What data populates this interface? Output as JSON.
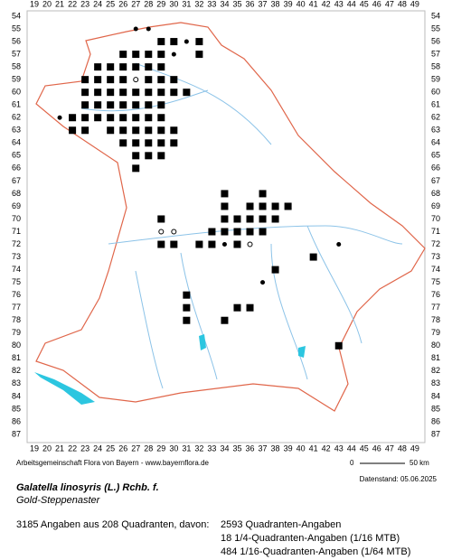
{
  "map": {
    "columns": [
      19,
      20,
      21,
      22,
      23,
      24,
      25,
      26,
      27,
      28,
      29,
      30,
      31,
      32,
      33,
      34,
      35,
      36,
      37,
      38,
      39,
      40,
      41,
      42,
      43,
      44,
      45,
      46,
      47,
      48,
      49
    ],
    "rows": [
      54,
      55,
      56,
      57,
      58,
      59,
      60,
      61,
      62,
      63,
      64,
      65,
      66,
      67,
      68,
      69,
      70,
      71,
      72,
      73,
      74,
      75,
      76,
      77,
      78,
      79,
      80,
      81,
      82,
      83,
      84,
      85,
      86,
      87
    ],
    "squares": [
      [
        29,
        56
      ],
      [
        30,
        56
      ],
      [
        32,
        56
      ],
      [
        26,
        57
      ],
      [
        27,
        57
      ],
      [
        28,
        57
      ],
      [
        29,
        57
      ],
      [
        32,
        57
      ],
      [
        24,
        58
      ],
      [
        25,
        58
      ],
      [
        26,
        58
      ],
      [
        27,
        58
      ],
      [
        28,
        58
      ],
      [
        29,
        58
      ],
      [
        23,
        59
      ],
      [
        24,
        59
      ],
      [
        25,
        59
      ],
      [
        26,
        59
      ],
      [
        28,
        59
      ],
      [
        29,
        59
      ],
      [
        30,
        59
      ],
      [
        23,
        60
      ],
      [
        24,
        60
      ],
      [
        25,
        60
      ],
      [
        26,
        60
      ],
      [
        27,
        60
      ],
      [
        28,
        60
      ],
      [
        29,
        60
      ],
      [
        30,
        60
      ],
      [
        31,
        60
      ],
      [
        23,
        61
      ],
      [
        24,
        61
      ],
      [
        25,
        61
      ],
      [
        26,
        61
      ],
      [
        27,
        61
      ],
      [
        28,
        61
      ],
      [
        29,
        61
      ],
      [
        22,
        62
      ],
      [
        23,
        62
      ],
      [
        24,
        62
      ],
      [
        25,
        62
      ],
      [
        26,
        62
      ],
      [
        27,
        62
      ],
      [
        28,
        62
      ],
      [
        29,
        62
      ],
      [
        22,
        63
      ],
      [
        23,
        63
      ],
      [
        25,
        63
      ],
      [
        26,
        63
      ],
      [
        27,
        63
      ],
      [
        28,
        63
      ],
      [
        29,
        63
      ],
      [
        30,
        63
      ],
      [
        26,
        64
      ],
      [
        27,
        64
      ],
      [
        28,
        64
      ],
      [
        29,
        64
      ],
      [
        30,
        64
      ],
      [
        27,
        65
      ],
      [
        28,
        65
      ],
      [
        29,
        65
      ],
      [
        27,
        66
      ],
      [
        34,
        68
      ],
      [
        37,
        68
      ],
      [
        34,
        69
      ],
      [
        36,
        69
      ],
      [
        37,
        69
      ],
      [
        38,
        69
      ],
      [
        39,
        69
      ],
      [
        29,
        70
      ],
      [
        34,
        70
      ],
      [
        35,
        70
      ],
      [
        36,
        70
      ],
      [
        37,
        70
      ],
      [
        38,
        70
      ],
      [
        33,
        71
      ],
      [
        34,
        71
      ],
      [
        35,
        71
      ],
      [
        36,
        71
      ],
      [
        37,
        71
      ],
      [
        29,
        72
      ],
      [
        30,
        72
      ],
      [
        32,
        72
      ],
      [
        33,
        72
      ],
      [
        35,
        72
      ],
      [
        41,
        73
      ],
      [
        38,
        74
      ],
      [
        31,
        76
      ],
      [
        31,
        77
      ],
      [
        35,
        77
      ],
      [
        36,
        77
      ],
      [
        31,
        78
      ],
      [
        34,
        78
      ],
      [
        43,
        80
      ]
    ],
    "dots": [
      [
        27,
        55
      ],
      [
        28,
        55
      ],
      [
        31,
        56
      ],
      [
        30,
        57
      ],
      [
        21,
        62
      ],
      [
        43,
        72
      ],
      [
        37,
        75
      ],
      [
        34,
        72
      ]
    ],
    "circles": [
      [
        27,
        59
      ],
      [
        29,
        71
      ],
      [
        30,
        71
      ],
      [
        36,
        72
      ]
    ]
  },
  "credit": "Arbeitsgemeinschaft Flora von Bayern - www.bayernflora.de",
  "scale": {
    "start": "0",
    "end": "50 km"
  },
  "date": "Datenstand: 05.06.2025",
  "title": "Galatella linosyris (L.) Rchb. f.",
  "subtitle": "Gold-Steppenaster",
  "summary": "3185 Angaben aus 208 Quadranten, davon:",
  "counts": [
    "2593 Quadranten-Angaben",
    "18 1/4-Quadranten-Angaben (1/16 MTB)",
    "484 1/16-Quadranten-Angaben (1/64 MTB)"
  ]
}
